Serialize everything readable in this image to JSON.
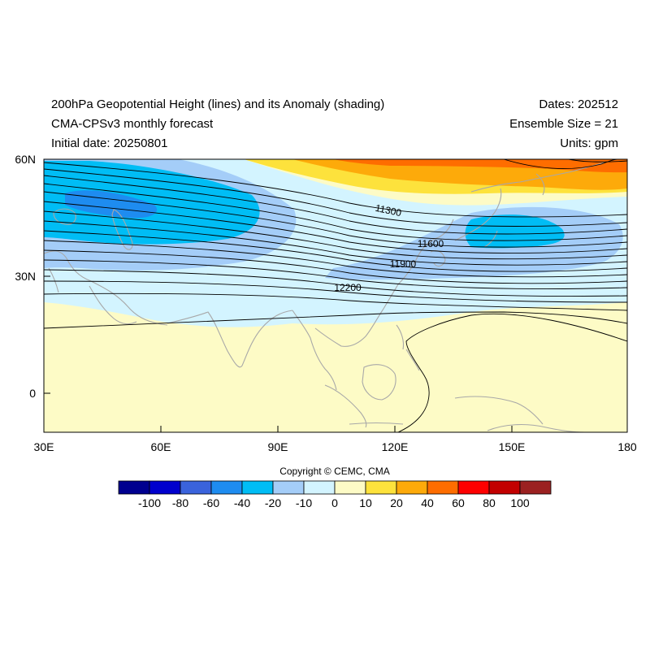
{
  "header": {
    "left": [
      "200hPa Geopotential Height (lines) and its Anomaly (shading)",
      "CMA-CPSv3 monthly forecast",
      "Initial date: 20250801"
    ],
    "right": [
      "Dates: 202512",
      "Ensemble Size = 21",
      "Units: gpm"
    ]
  },
  "map": {
    "extent": {
      "lon": [
        30,
        180
      ],
      "lat": [
        -10,
        60
      ]
    },
    "lat_ticks": [
      "60N",
      "30N",
      "0"
    ],
    "lon_ticks": [
      "30E",
      "60E",
      "90E",
      "120E",
      "150E",
      "180"
    ],
    "contour_labels": [
      "11300",
      "11600",
      "11900",
      "12200"
    ]
  },
  "copyright": "Copyright © CEMC, CMA",
  "colorbar": {
    "labels": [
      "-100",
      "-80",
      "-60",
      "-40",
      "-20",
      "-10",
      "0",
      "10",
      "20",
      "40",
      "60",
      "80",
      "100"
    ],
    "colors": [
      "#00008f",
      "#0000cd",
      "#3a63dc",
      "#1e8cf0",
      "#00bdf5",
      "#a4cdf8",
      "#d3f4ff",
      "#fdfbc6",
      "#fde23c",
      "#fdaa0a",
      "#fe6d00",
      "#fe0000",
      "#c20000",
      "#9b2121"
    ]
  }
}
